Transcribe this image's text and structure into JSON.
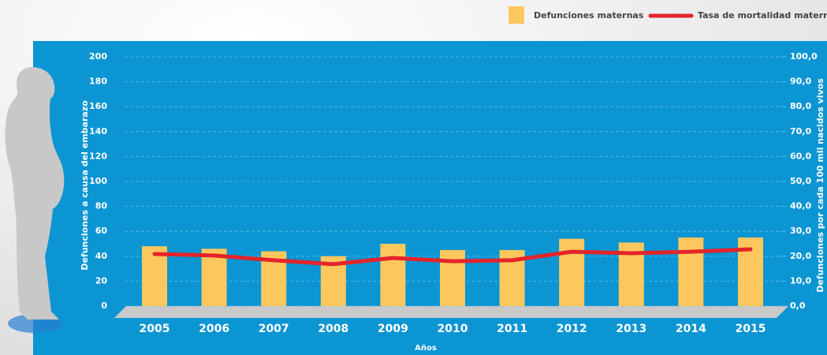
{
  "chart_data": {
    "type": "bar",
    "categories": [
      "2005",
      "2006",
      "2007",
      "2008",
      "2009",
      "2010",
      "2011",
      "2012",
      "2013",
      "2014",
      "2015"
    ],
    "series": [
      {
        "name": "Defunciones maternas",
        "type": "bar",
        "color": "#fcc75c",
        "values": [
          48,
          46,
          44,
          40,
          50,
          45,
          45,
          54,
          51,
          55,
          55
        ]
      },
      {
        "name": "Tasa de mortalidad materna",
        "type": "line",
        "axis": "y2",
        "color": "#e3242b",
        "values": [
          20.9,
          20.3,
          18.4,
          16.8,
          19.3,
          18.0,
          18.4,
          21.8,
          21.2,
          21.8,
          22.8
        ]
      }
    ],
    "ylabel": "Defunciones a causa del embarazo",
    "y2label": "Defunciones por cada 100 mil nacidos vivos",
    "xlabel": "Años",
    "ylim": [
      0,
      200
    ],
    "yticks": [
      0,
      20,
      40,
      60,
      80,
      100,
      120,
      140,
      160,
      180,
      200
    ],
    "y2lim": [
      0,
      100
    ],
    "y2ticks": [
      {
        "value": 0,
        "label": "0,0"
      },
      {
        "value": 10,
        "label": "10,0"
      },
      {
        "value": 20,
        "label": "20,0"
      },
      {
        "value": 30,
        "label": "30,0"
      },
      {
        "value": 40,
        "label": "40,0"
      },
      {
        "value": 50,
        "label": "50,0"
      },
      {
        "value": 60,
        "label": "60,0"
      },
      {
        "value": 70,
        "label": "70,0"
      },
      {
        "value": 80,
        "label": "80,0"
      },
      {
        "value": 90,
        "label": "90,0"
      },
      {
        "value": 100,
        "label": "100,0"
      }
    ],
    "grid": true
  }
}
